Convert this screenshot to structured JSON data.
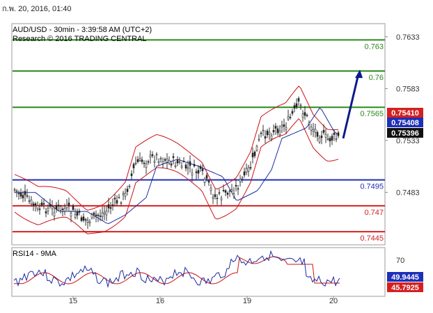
{
  "timestamp": "ก.พ. 20, 2016, 01:40",
  "header": {
    "title": "AUD/USD - 30min - 3:39:58 AM (UTC+2)",
    "subtitle": "Research © 2016 TRADING CENTRAL"
  },
  "colors": {
    "bull": "#2a8a1a",
    "bear": "#d42020",
    "pivot": "#1e2fb8",
    "band": "#cc1111",
    "ma": "#1a2aa0",
    "price_tag": "#111111",
    "arrow": "#0a1a8a"
  },
  "chart_data": [
    {
      "type": "candlestick",
      "y_axis_ticks": [
        "0.7633",
        "0.7583",
        "0.7533",
        "0.7483"
      ],
      "x_axis_ticks": [
        "15",
        "16",
        "19",
        "20"
      ],
      "levels": [
        {
          "value": 0.763,
          "label": "0.763",
          "color": "#2a8a1a"
        },
        {
          "value": 0.76,
          "label": "0.76",
          "color": "#2a8a1a"
        },
        {
          "value": 0.7565,
          "label": "0.7565",
          "color": "#2a8a1a"
        },
        {
          "value": 0.7495,
          "label": "0.7495",
          "color": "#1e2fb8"
        },
        {
          "value": 0.747,
          "label": "0.747",
          "color": "#d42020"
        },
        {
          "value": 0.7445,
          "label": "0.7445",
          "color": "#d42020"
        }
      ],
      "price_tags": [
        {
          "value": 0.7541,
          "label": "0.75410",
          "color": "#d42020"
        },
        {
          "value": 0.75408,
          "label": "0.75408",
          "color": "#1e2fb8"
        },
        {
          "value": 0.75396,
          "label": "0.75396",
          "color": "#111111"
        }
      ],
      "ylim": [
        0.7433,
        0.7645
      ],
      "arrow": {
        "from": [
          0.7535
        ],
        "to": [
          0.76
        ]
      }
    },
    {
      "type": "line",
      "title": "RSI14 - 9MA",
      "y_axis_ticks": [
        "70"
      ],
      "tags": [
        {
          "label": "49.9445",
          "color": "#1e2fb8"
        },
        {
          "label": "45.7925",
          "color": "#d42020"
        }
      ],
      "ylim": [
        20,
        80
      ]
    }
  ]
}
